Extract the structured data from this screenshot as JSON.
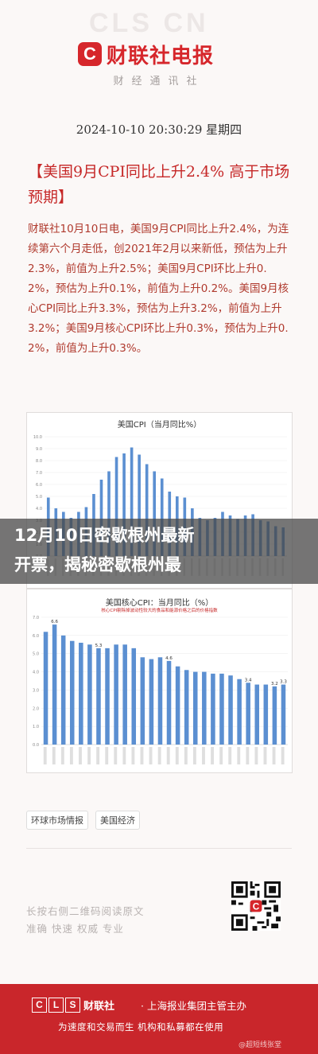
{
  "header": {
    "bg_mark": "CLS CN",
    "logo_letter": "C",
    "logo_text": "财联社电报",
    "logo_sub": "财经通讯社"
  },
  "article": {
    "datetime": "2024-10-10 20:30:29 星期四",
    "headline": "【美国9月CPI同比上升2.4% 高于市场预期】",
    "body": "财联社10月10日电，美国9月CPI同比上升2.4%，为连续第六个月走低，创2021年2月以来新低，预估为上升2.3%，前值为上升2.5%；美国9月CPI环比上升0.2%，预估为上升0.1%，前值为上升0.2%。美国9月核心CPI同比上升3.3%，预估为上升3.2%，前值为上升3.2%；美国9月核心CPI环比上升0.3%，预估为上升0.2%，前值为上升0.3%。"
  },
  "overlay": {
    "line1": "12月10日密歇根州最新",
    "line2": "开票，揭秘密歇根州最"
  },
  "chart_data": [
    {
      "type": "bar",
      "title": "美国CPI（当月同比%）",
      "values": [
        4.9,
        4.0,
        3.7,
        3.2,
        3.7,
        4.1,
        5.2,
        6.4,
        7.1,
        8.3,
        8.6,
        9.1,
        8.5,
        7.7,
        7.1,
        6.5,
        5.4,
        5.0,
        4.9,
        4.0,
        3.2,
        3.0,
        3.2,
        3.7,
        3.4,
        3.1,
        3.4,
        3.5,
        3.0,
        2.9,
        2.5,
        2.4
      ],
      "ylim": [
        0,
        10
      ]
    },
    {
      "type": "bar",
      "title": "美国核心CPI：当月同比（%）",
      "subtitle": "核心CPI剔除掉波动性较大的食品和能源价格之后的价格指数",
      "values": [
        6.2,
        6.6,
        6.0,
        5.7,
        5.6,
        5.5,
        5.3,
        5.3,
        5.5,
        5.5,
        5.3,
        4.8,
        4.7,
        4.8,
        4.6,
        4.3,
        4.1,
        4.0,
        4.0,
        3.9,
        3.9,
        3.8,
        3.6,
        3.4,
        3.3,
        3.3,
        3.2,
        3.3
      ],
      "data_labels": {
        "1": "6.6",
        "6": "5.3",
        "14": "4.6",
        "23": "3.4",
        "26": "3.2",
        "27": "3.3"
      },
      "ylim": [
        0,
        7
      ]
    }
  ],
  "tags": [
    "环球市场情报",
    "美国经济"
  ],
  "qr_captions": {
    "line1": "长按右侧二维码阅读原文",
    "line2": "准确 快速 权威 专业"
  },
  "footer": {
    "cls_letters": [
      "C",
      "L",
      "S"
    ],
    "brand": "财联社",
    "org": "· 上海报业集团主管主办",
    "slogan": "为速度和交易而生 机构和私募都在使用",
    "watermark": "@超短线张堂"
  },
  "colors": {
    "brand_red": "#d6262b",
    "bar_blue": "#5b8fd1"
  }
}
